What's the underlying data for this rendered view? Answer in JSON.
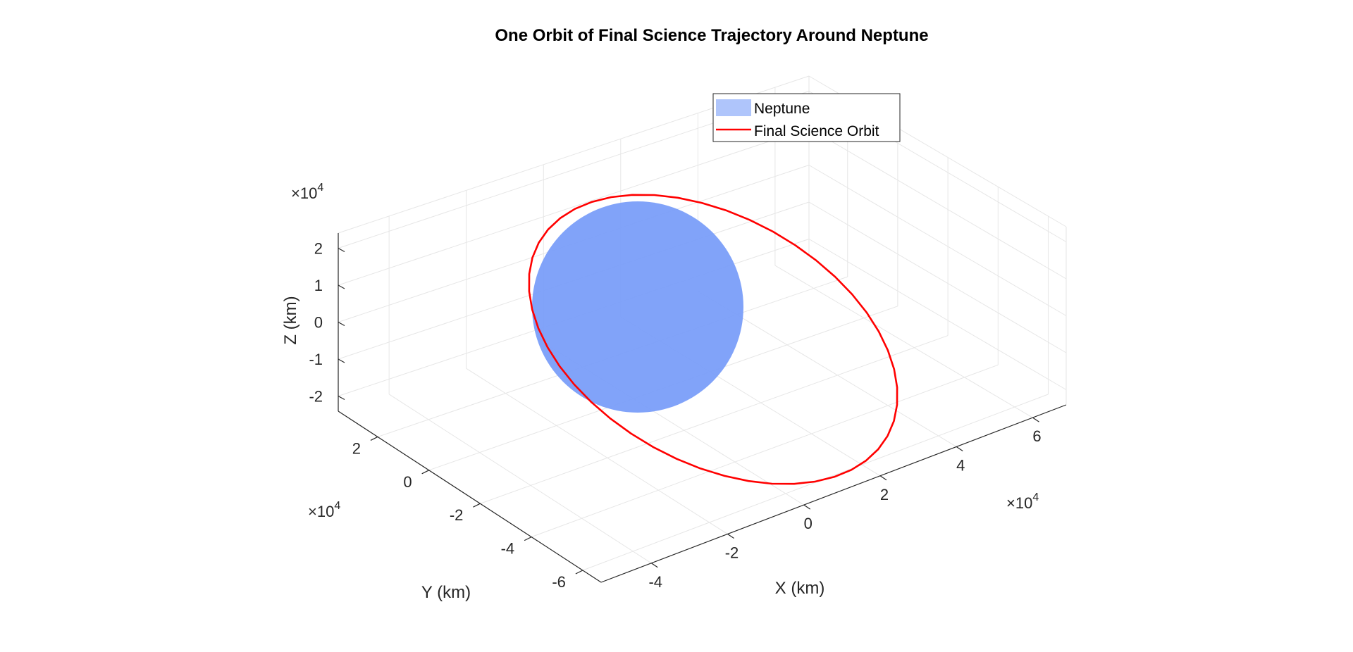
{
  "chart_data": {
    "type": "line",
    "title": "One Orbit of Final Science Trajectory Around Neptune",
    "xlabel": "X (km)",
    "ylabel": "Y (km)",
    "zlabel": "Z (km)",
    "x_ticks": [
      "-4",
      "-2",
      "0",
      "2",
      "4",
      "6"
    ],
    "y_ticks": [
      "-6",
      "-4",
      "-2",
      "0",
      "2"
    ],
    "z_ticks": [
      "-2",
      "-1",
      "0",
      "1",
      "2"
    ],
    "x_multiplier": {
      "base": "×10",
      "exp": "4"
    },
    "y_multiplier": {
      "base": "×10",
      "exp": "4"
    },
    "z_multiplier": {
      "base": "×10",
      "exp": "4"
    },
    "grid": true,
    "view": "3d",
    "legend_position": "top-center",
    "series": [
      {
        "name": "Neptune",
        "kind": "sphere",
        "color": "#7a9ef9",
        "radius_km": 24764
      },
      {
        "name": "Final Science Orbit",
        "kind": "orbit",
        "color": "#ff0000",
        "orbit": {
          "center": [
            15000,
            -10000,
            0
          ],
          "semi_major_km": 55000,
          "semi_minor_km": 40000
        }
      }
    ]
  }
}
